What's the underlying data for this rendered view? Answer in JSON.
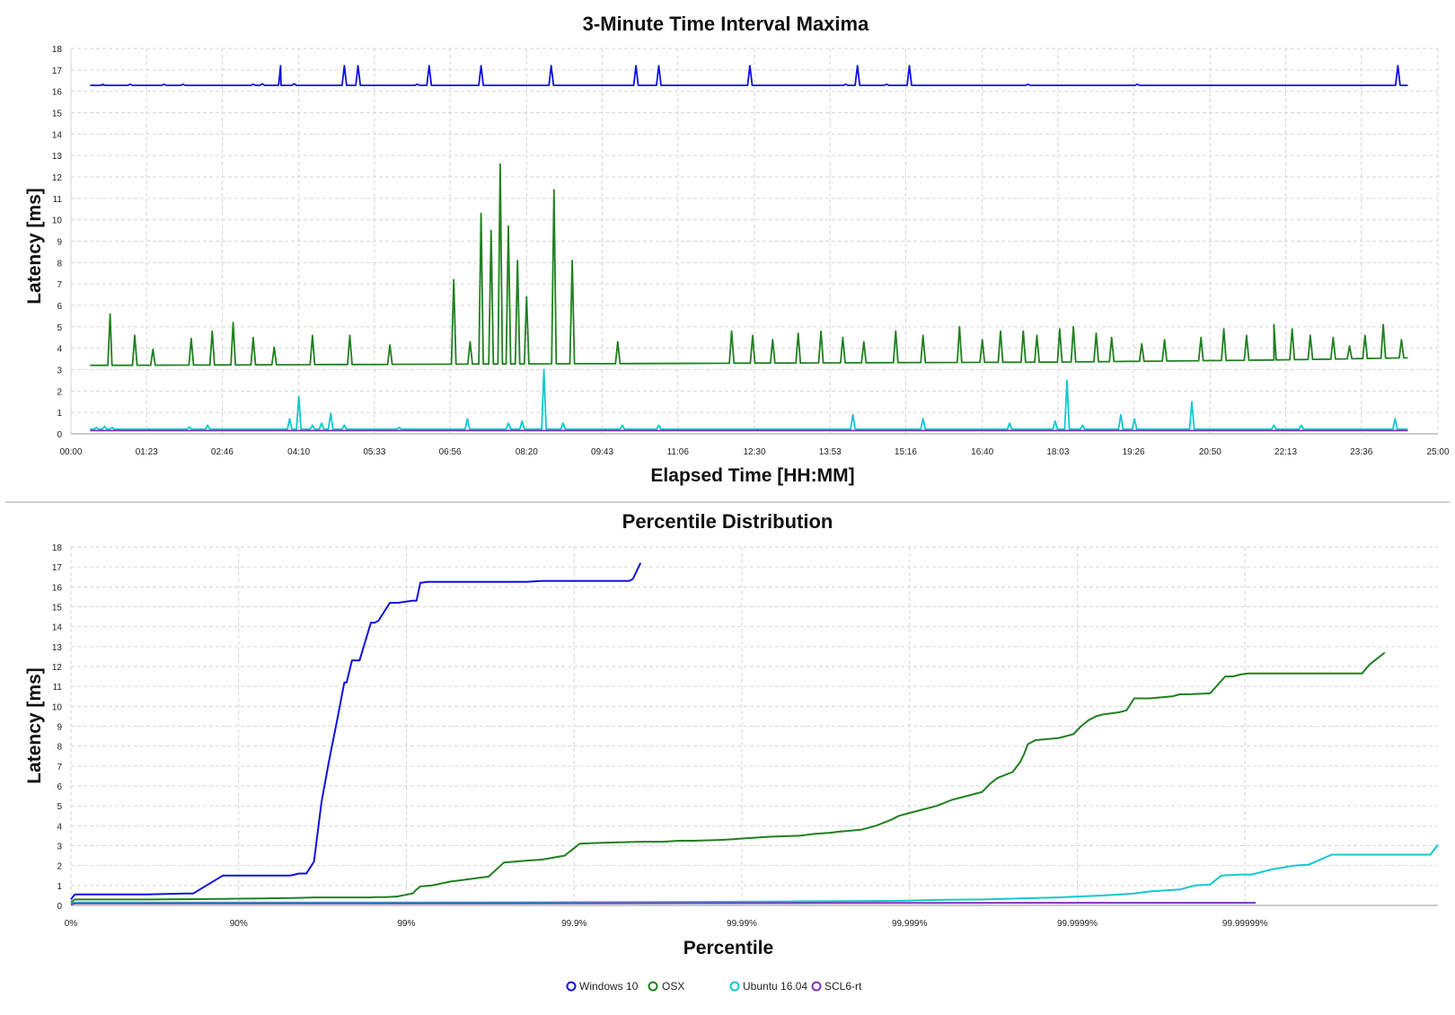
{
  "chart_data": [
    {
      "type": "line",
      "title": "3-Minute Time Interval Maxima",
      "xlabel": "Elapsed Time [HH:MM]",
      "ylabel": "Latency [ms]",
      "x_ticks": [
        "00:00",
        "01:23",
        "02:46",
        "04:10",
        "05:33",
        "06:56",
        "08:20",
        "09:43",
        "11:06",
        "12:30",
        "13:53",
        "15:16",
        "16:40",
        "18:03",
        "19:26",
        "20:50",
        "22:13",
        "23:36",
        "25:00"
      ],
      "xlim": [
        "00:00",
        "25:00"
      ],
      "ylim": [
        0,
        18
      ],
      "y_ticks": [
        0,
        1,
        2,
        3,
        4,
        5,
        6,
        7,
        8,
        9,
        10,
        11,
        12,
        13,
        14,
        15,
        16,
        17,
        18
      ],
      "grid": true,
      "series": [
        {
          "name": "Windows 10",
          "color": "#1010e0",
          "baseline": 16.28,
          "points": [
            [
              "00:21",
              16.28
            ],
            [
              "24:27",
              16.28
            ]
          ],
          "spikes": [
            [
              "00:35",
              16.32
            ],
            [
              "01:05",
              16.33
            ],
            [
              "01:42",
              16.33
            ],
            [
              "02:03",
              16.33
            ],
            [
              "03:20",
              16.33
            ],
            [
              "03:30",
              16.35
            ],
            [
              "03:48",
              16.32
            ],
            [
              "03:50",
              17.2
            ],
            [
              "04:05",
              16.35
            ],
            [
              "05:00",
              17.2
            ],
            [
              "05:15",
              17.2
            ],
            [
              "06:20",
              16.33
            ],
            [
              "06:33",
              17.2
            ],
            [
              "07:30",
              17.2
            ],
            [
              "08:47",
              17.2
            ],
            [
              "10:20",
              17.2
            ],
            [
              "10:45",
              17.2
            ],
            [
              "12:25",
              17.2
            ],
            [
              "14:10",
              16.33
            ],
            [
              "14:23",
              17.2
            ],
            [
              "14:55",
              16.33
            ],
            [
              "15:20",
              17.2
            ],
            [
              "17:30",
              16.33
            ],
            [
              "19:30",
              16.33
            ],
            [
              "24:16",
              17.2
            ]
          ]
        },
        {
          "name": "OSX",
          "color": "#208020",
          "baseline": 3.25,
          "points": [
            [
              "00:21",
              3.2
            ],
            [
              "00:45",
              3.2
            ],
            [
              "12:00",
              3.3
            ],
            [
              "18:00",
              3.35
            ],
            [
              "22:00",
              3.45
            ],
            [
              "24:27",
              3.55
            ]
          ],
          "spikes": [
            [
              "00:43",
              5.6
            ],
            [
              "01:10",
              4.6
            ],
            [
              "01:30",
              3.95
            ],
            [
              "02:12",
              4.45
            ],
            [
              "02:35",
              4.8
            ],
            [
              "02:58",
              5.2
            ],
            [
              "03:20",
              4.5
            ],
            [
              "03:43",
              4.05
            ],
            [
              "04:25",
              4.6
            ],
            [
              "05:06",
              4.6
            ],
            [
              "05:50",
              4.15
            ],
            [
              "07:00",
              7.2
            ],
            [
              "07:18",
              4.3
            ],
            [
              "07:30",
              10.3
            ],
            [
              "07:41",
              9.5
            ],
            [
              "07:51",
              12.6
            ],
            [
              "08:00",
              9.7
            ],
            [
              "08:10",
              8.1
            ],
            [
              "08:20",
              6.4
            ],
            [
              "08:50",
              11.4
            ],
            [
              "09:10",
              8.1
            ],
            [
              "10:00",
              4.3
            ],
            [
              "12:05",
              4.8
            ],
            [
              "12:28",
              4.6
            ],
            [
              "12:50",
              4.4
            ],
            [
              "13:18",
              4.7
            ],
            [
              "13:43",
              4.8
            ],
            [
              "14:07",
              4.5
            ],
            [
              "14:30",
              4.3
            ],
            [
              "15:05",
              4.8
            ],
            [
              "15:35",
              4.6
            ],
            [
              "16:15",
              5.0
            ],
            [
              "16:40",
              4.4
            ],
            [
              "17:00",
              4.8
            ],
            [
              "17:25",
              4.8
            ],
            [
              "17:40",
              4.6
            ],
            [
              "18:05",
              4.9
            ],
            [
              "18:20",
              5.0
            ],
            [
              "18:45",
              4.7
            ],
            [
              "19:02",
              4.5
            ],
            [
              "19:35",
              4.2
            ],
            [
              "20:00",
              4.4
            ],
            [
              "20:40",
              4.5
            ],
            [
              "21:05",
              4.9
            ],
            [
              "21:30",
              4.6
            ],
            [
              "22:00",
              5.1
            ],
            [
              "22:20",
              4.9
            ],
            [
              "22:40",
              4.6
            ],
            [
              "23:05",
              4.5
            ],
            [
              "23:23",
              4.1
            ],
            [
              "23:40",
              4.6
            ],
            [
              "24:00",
              5.1
            ],
            [
              "24:20",
              4.4
            ]
          ]
        },
        {
          "name": "Ubuntu 16.04",
          "color": "#10c8d0",
          "baseline": 0.22,
          "points": [
            [
              "00:21",
              0.22
            ],
            [
              "24:27",
              0.22
            ]
          ],
          "spikes": [
            [
              "00:28",
              0.3
            ],
            [
              "00:37",
              0.35
            ],
            [
              "00:45",
              0.3
            ],
            [
              "02:10",
              0.32
            ],
            [
              "02:30",
              0.4
            ],
            [
              "04:00",
              0.7
            ],
            [
              "04:10",
              1.75
            ],
            [
              "04:25",
              0.4
            ],
            [
              "04:35",
              0.5
            ],
            [
              "04:45",
              0.95
            ],
            [
              "05:00",
              0.4
            ],
            [
              "06:00",
              0.3
            ],
            [
              "07:15",
              0.7
            ],
            [
              "08:00",
              0.5
            ],
            [
              "08:15",
              0.6
            ],
            [
              "08:39",
              3.0
            ],
            [
              "09:00",
              0.5
            ],
            [
              "10:05",
              0.4
            ],
            [
              "10:45",
              0.4
            ],
            [
              "14:18",
              0.9
            ],
            [
              "15:35",
              0.7
            ],
            [
              "17:10",
              0.5
            ],
            [
              "18:00",
              0.6
            ],
            [
              "18:13",
              2.5
            ],
            [
              "18:30",
              0.4
            ],
            [
              "19:12",
              0.9
            ],
            [
              "19:27",
              0.7
            ],
            [
              "20:30",
              1.5
            ],
            [
              "22:00",
              0.4
            ],
            [
              "22:30",
              0.4
            ],
            [
              "24:13",
              0.7
            ]
          ]
        },
        {
          "name": "SCL6-rt",
          "color": "#8030c0",
          "baseline": 0.15,
          "points": [
            [
              "00:21",
              0.15
            ],
            [
              "24:27",
              0.15
            ]
          ],
          "spikes": []
        }
      ]
    },
    {
      "type": "line",
      "title": "Percentile Distribution",
      "xlabel": "Percentile",
      "ylabel": "Latency [ms]",
      "x_scale": "log-percentile (nines)",
      "x_ticks": [
        "0%",
        "90%",
        "99%",
        "99.9%",
        "99.99%",
        "99.999%",
        "99.9999%",
        "99.99999%"
      ],
      "ylim": [
        0,
        18
      ],
      "y_ticks": [
        0,
        1,
        2,
        3,
        4,
        5,
        6,
        7,
        8,
        9,
        10,
        11,
        12,
        13,
        14,
        15,
        16,
        17,
        18
      ],
      "grid": true,
      "series": [
        {
          "name": "Windows 10",
          "color": "#1010e0",
          "nines": [
            0,
            0.05,
            1.0,
            1.5,
            1.6,
            1.61,
            2.0,
            2.4,
            2.6,
            2.88,
            2.95,
            3.0,
            3.1,
            3.2,
            3.3,
            3.4,
            3.5,
            3.6,
            3.63,
            3.7,
            3.8,
            3.95,
            4.0,
            4.05,
            4.2,
            4.3,
            4.5,
            4.55,
            4.6,
            4.7,
            4.8,
            4.9,
            4.95,
            5.0,
            5.05,
            5.1,
            5.2,
            5.3,
            5.4,
            5.5,
            5.6,
            5.8,
            6.0,
            6.2,
            6.4,
            6.8,
            7.0,
            7.1,
            7.2,
            7.3,
            7.35,
            7.4,
            7.5
          ],
          "values": [
            0.3,
            0.55,
            0.55,
            0.6,
            0.6,
            0.6,
            1.5,
            1.5,
            1.5,
            1.5,
            1.55,
            1.6,
            1.6,
            2.2,
            5.2,
            7.3,
            9.2,
            11.2,
            11.2,
            12.3,
            12.3,
            14.2,
            14.2,
            14.3,
            15.2,
            15.2,
            15.3,
            15.3,
            16.2,
            16.25,
            16.25,
            16.25,
            16.25,
            16.25,
            16.25,
            16.25,
            16.25,
            16.25,
            16.25,
            16.25,
            16.25,
            16.25,
            16.25,
            16.3,
            16.3,
            16.3,
            16.3,
            16.3,
            16.3,
            16.3,
            16.3,
            16.4,
            17.2
          ]
        },
        {
          "name": "OSX",
          "color": "#208020",
          "nines": [
            0,
            0.05,
            1.0,
            2.0,
            2.5,
            3.0,
            3.2,
            3.6,
            3.8,
            3.95,
            4.0,
            4.15,
            4.3,
            4.5,
            4.55,
            4.6,
            4.75,
            5.0,
            5.5,
            5.7,
            6.0,
            6.2,
            6.5,
            6.7,
            7.0,
            7.5,
            7.8,
            8.0,
            8.2,
            8.5,
            8.6,
            8.7,
            8.8,
            9.0,
            9.2,
            9.6,
            9.8,
            10.0,
            10.1,
            10.4,
            10.6,
            10.8,
            10.9,
            11.1,
            11.2,
            11.4,
            11.6,
            12.0,
            12.1,
            12.2,
            12.4,
            12.5,
            12.55,
            12.6,
            12.7,
            13.0,
            13.2,
            13.3,
            13.4,
            13.5,
            13.6,
            13.8,
            13.9,
            14.0,
            14.2,
            14.5,
            14.6,
            14.7,
            15.0,
            15.2,
            15.3,
            15.4,
            15.5,
            15.7,
            15.8,
            16.2,
            16.3,
            16.5,
            17.0,
            17.1,
            17.3
          ],
          "values": [
            0.15,
            0.3,
            0.3,
            0.33,
            0.35,
            0.38,
            0.4,
            0.4,
            0.4,
            0.4,
            0.42,
            0.42,
            0.45,
            0.6,
            0.8,
            0.95,
            1.0,
            1.2,
            1.45,
            2.15,
            2.25,
            2.3,
            2.5,
            3.1,
            3.15,
            3.2,
            3.2,
            3.25,
            3.25,
            3.28,
            3.3,
            3.32,
            3.35,
            3.4,
            3.45,
            3.5,
            3.6,
            3.65,
            3.7,
            3.8,
            4.0,
            4.3,
            4.5,
            4.7,
            4.8,
            5.0,
            5.3,
            5.7,
            6.1,
            6.4,
            6.7,
            7.2,
            7.6,
            8.1,
            8.3,
            8.4,
            8.6,
            9.0,
            9.3,
            9.5,
            9.6,
            9.7,
            9.8,
            10.4,
            10.4,
            10.5,
            10.6,
            10.6,
            10.65,
            11.5,
            11.5,
            11.6,
            11.65,
            11.65,
            11.65,
            11.65,
            11.65,
            11.65,
            11.65,
            12.1,
            12.7
          ]
        },
        {
          "name": "Ubuntu 16.04",
          "color": "#10c8d0",
          "nines": [
            0,
            0.05,
            2.0,
            4.0,
            6.0,
            7.5,
            8.5,
            9.5,
            10.5,
            11.0,
            11.5,
            12.0,
            12.5,
            13.0,
            13.3,
            13.6,
            14.0,
            14.2,
            14.6,
            14.8,
            15.0,
            15.15,
            15.4,
            15.55,
            15.8,
            16.1,
            16.3,
            16.6,
            16.9,
            17.1,
            17.3,
            17.5,
            17.7,
            17.9,
            18.0
          ],
          "values": [
            0.1,
            0.15,
            0.15,
            0.15,
            0.16,
            0.17,
            0.18,
            0.2,
            0.22,
            0.24,
            0.28,
            0.3,
            0.35,
            0.4,
            0.45,
            0.5,
            0.6,
            0.7,
            0.8,
            1.0,
            1.05,
            1.5,
            1.55,
            1.55,
            1.8,
            2.0,
            2.05,
            2.55,
            2.55,
            2.55,
            2.55,
            2.55,
            2.55,
            2.55,
            3.05
          ]
        },
        {
          "name": "SCL6-rt",
          "color": "#8030c0",
          "nines": [
            0,
            0.05,
            5.0,
            10.0,
            14.5,
            15.6
          ],
          "values": [
            0.05,
            0.1,
            0.1,
            0.12,
            0.13,
            0.13
          ]
        }
      ]
    }
  ],
  "legend": [
    {
      "label": "Windows 10",
      "color": "#1010e0"
    },
    {
      "label": "OSX",
      "color": "#208020"
    },
    {
      "label": "Ubuntu 16.04",
      "color": "#10c8d0"
    },
    {
      "label": "SCL6-rt",
      "color": "#8030c0"
    }
  ]
}
